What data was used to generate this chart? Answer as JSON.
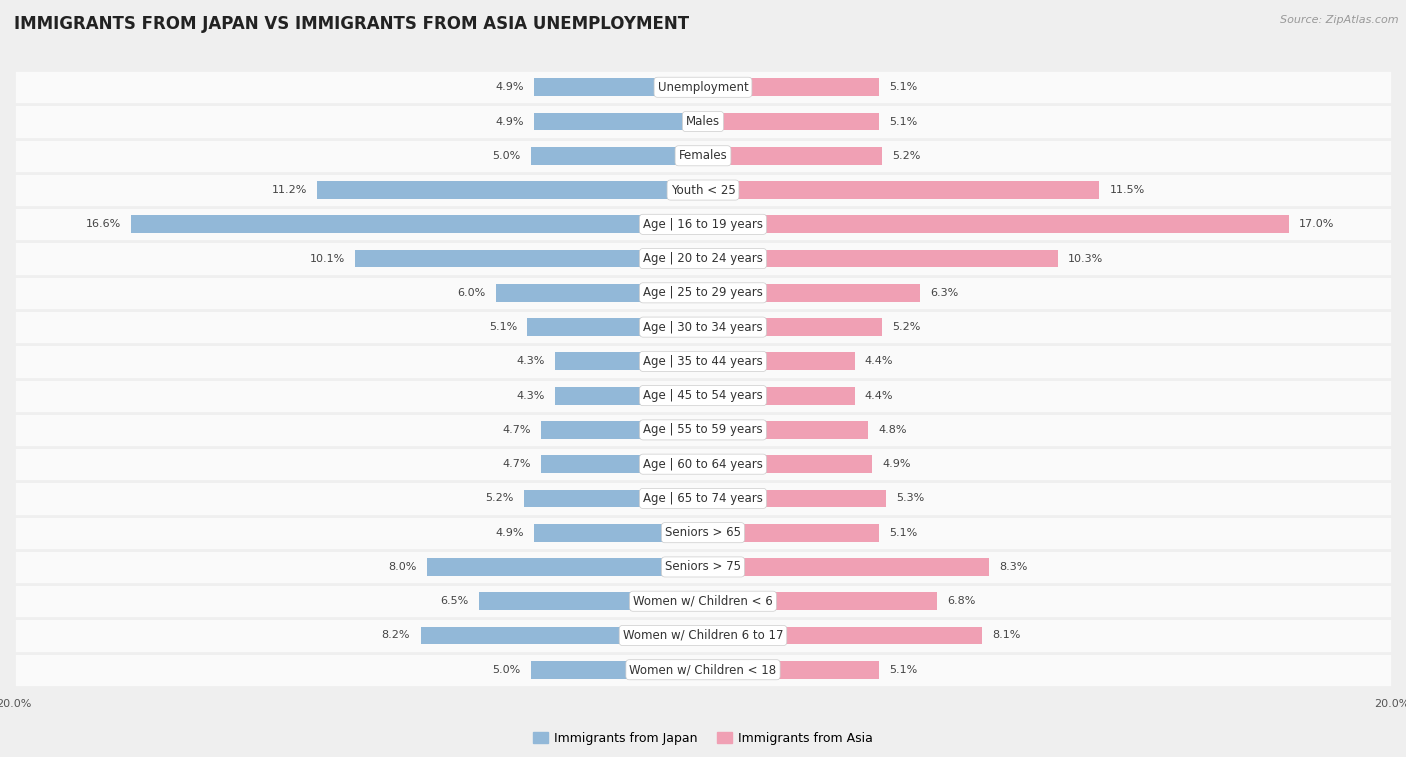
{
  "title": "IMMIGRANTS FROM JAPAN VS IMMIGRANTS FROM ASIA UNEMPLOYMENT",
  "source": "Source: ZipAtlas.com",
  "categories": [
    "Unemployment",
    "Males",
    "Females",
    "Youth < 25",
    "Age | 16 to 19 years",
    "Age | 20 to 24 years",
    "Age | 25 to 29 years",
    "Age | 30 to 34 years",
    "Age | 35 to 44 years",
    "Age | 45 to 54 years",
    "Age | 55 to 59 years",
    "Age | 60 to 64 years",
    "Age | 65 to 74 years",
    "Seniors > 65",
    "Seniors > 75",
    "Women w/ Children < 6",
    "Women w/ Children 6 to 17",
    "Women w/ Children < 18"
  ],
  "japan_values": [
    4.9,
    4.9,
    5.0,
    11.2,
    16.6,
    10.1,
    6.0,
    5.1,
    4.3,
    4.3,
    4.7,
    4.7,
    5.2,
    4.9,
    8.0,
    6.5,
    8.2,
    5.0
  ],
  "asia_values": [
    5.1,
    5.1,
    5.2,
    11.5,
    17.0,
    10.3,
    6.3,
    5.2,
    4.4,
    4.4,
    4.8,
    4.9,
    5.3,
    5.1,
    8.3,
    6.8,
    8.1,
    5.1
  ],
  "japan_color": "#92b8d8",
  "asia_color": "#f0a0b4",
  "japan_label": "Immigrants from Japan",
  "asia_label": "Immigrants from Asia",
  "axis_limit": 20.0,
  "bg_color": "#efefef",
  "row_bg_color": "#fafafa",
  "row_alt_color": "#f0f0f0",
  "title_fontsize": 12,
  "label_fontsize": 8.5,
  "value_fontsize": 8,
  "legend_fontsize": 9,
  "source_fontsize": 8
}
